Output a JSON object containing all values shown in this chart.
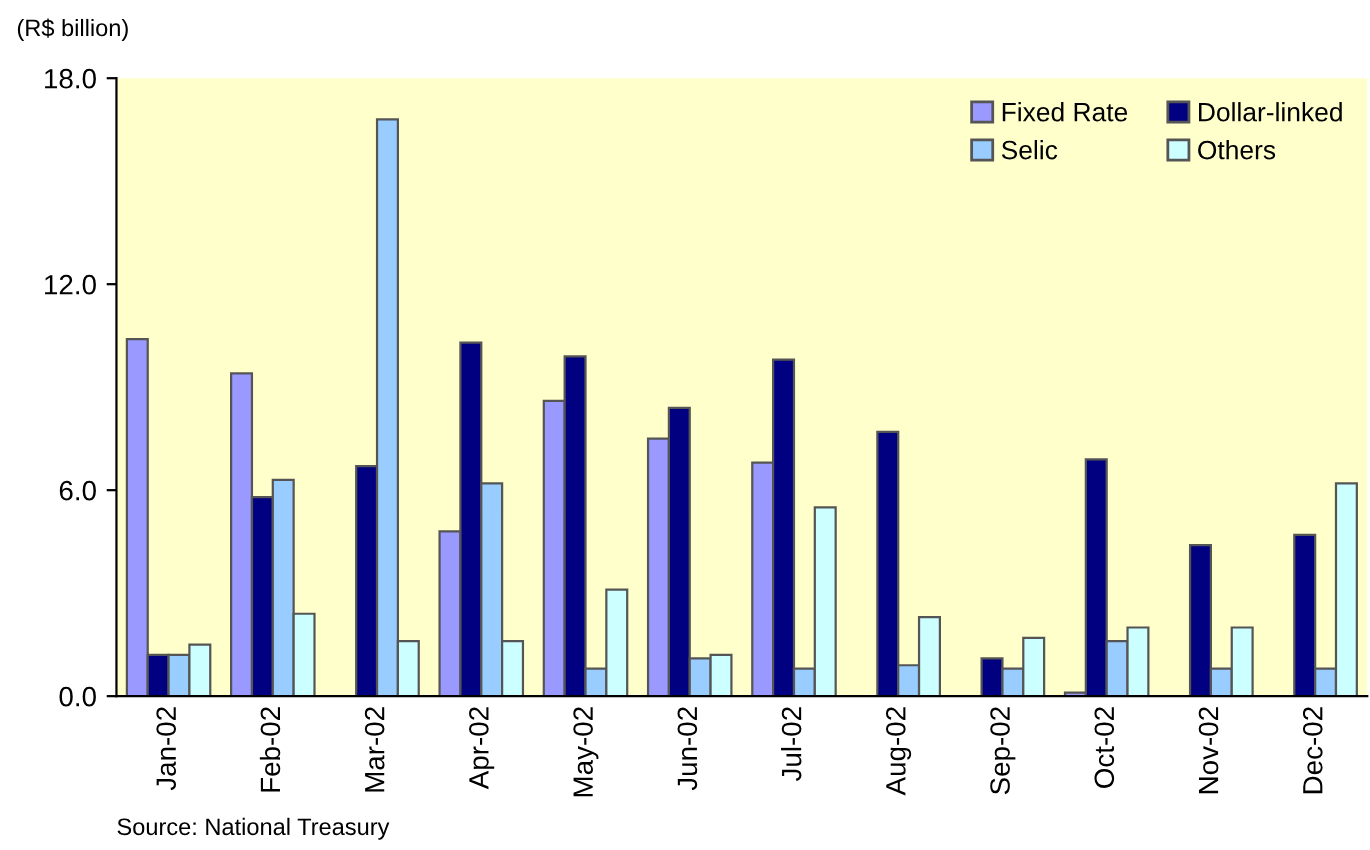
{
  "chart_data": {
    "type": "bar",
    "ylabel": "(R$ billion)",
    "categories": [
      "Jan-02",
      "Feb-02",
      "Mar-02",
      "Apr-02",
      "May-02",
      "Jun-02",
      "Jul-02",
      "Aug-02",
      "Sep-02",
      "Oct-02",
      "Nov-02",
      "Dec-02"
    ],
    "series": [
      {
        "name": "Fixed Rate",
        "color": "#9999ff",
        "values": [
          10.4,
          9.4,
          null,
          4.8,
          8.6,
          7.5,
          6.8,
          null,
          null,
          0.1,
          null,
          null
        ]
      },
      {
        "name": "Dollar-linked",
        "color": "#000080",
        "values": [
          1.2,
          5.8,
          6.7,
          10.3,
          9.9,
          8.4,
          9.8,
          7.7,
          1.1,
          6.9,
          4.4,
          4.7
        ]
      },
      {
        "name": "Selic",
        "color": "#99ccff",
        "values": [
          1.2,
          6.3,
          16.8,
          6.2,
          0.8,
          1.1,
          0.8,
          0.9,
          0.8,
          1.6,
          0.8,
          0.8
        ]
      },
      {
        "name": "Others",
        "color": "#ccffff",
        "values": [
          1.5,
          2.4,
          1.6,
          1.6,
          3.1,
          1.2,
          5.5,
          2.3,
          1.7,
          2.0,
          2.0,
          6.2
        ]
      }
    ],
    "ylim": [
      0,
      18
    ],
    "yticks": [
      {
        "value": 0,
        "label": "0.0"
      },
      {
        "value": 6,
        "label": "6.0"
      },
      {
        "value": 12,
        "label": "12.0"
      },
      {
        "value": 18,
        "label": "18.0"
      }
    ],
    "grid": false,
    "legend": "top right",
    "annotations": [
      "Source: National Treasury"
    ]
  }
}
